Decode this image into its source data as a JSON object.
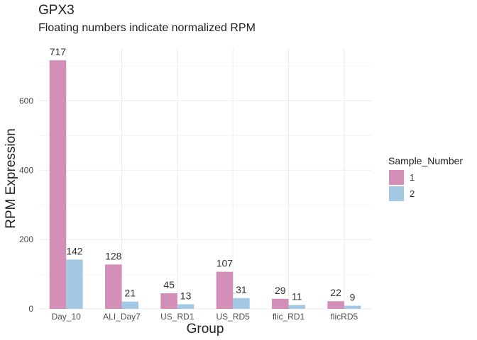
{
  "chart_data": {
    "type": "bar",
    "title": "GPX3",
    "subtitle": "Floating numbers indicate normalized RPM",
    "xlabel": "Group",
    "ylabel": "RPM Expression",
    "categories": [
      "Day_10",
      "ALI_Day7",
      "US_RD1",
      "US_RD5",
      "flic_RD1",
      "flicRD5"
    ],
    "series": [
      {
        "name": "1",
        "color": "#d48fb8",
        "values": [
          717,
          128,
          45,
          107,
          29,
          22
        ]
      },
      {
        "name": "2",
        "color": "#a3c8e3",
        "values": [
          142,
          21,
          13,
          31,
          11,
          9
        ]
      }
    ],
    "ylim": [
      0,
      752
    ],
    "yticks": [
      0,
      200,
      400,
      600
    ],
    "grid": true,
    "legend": {
      "title": "Sample_Number",
      "position": "right"
    }
  }
}
